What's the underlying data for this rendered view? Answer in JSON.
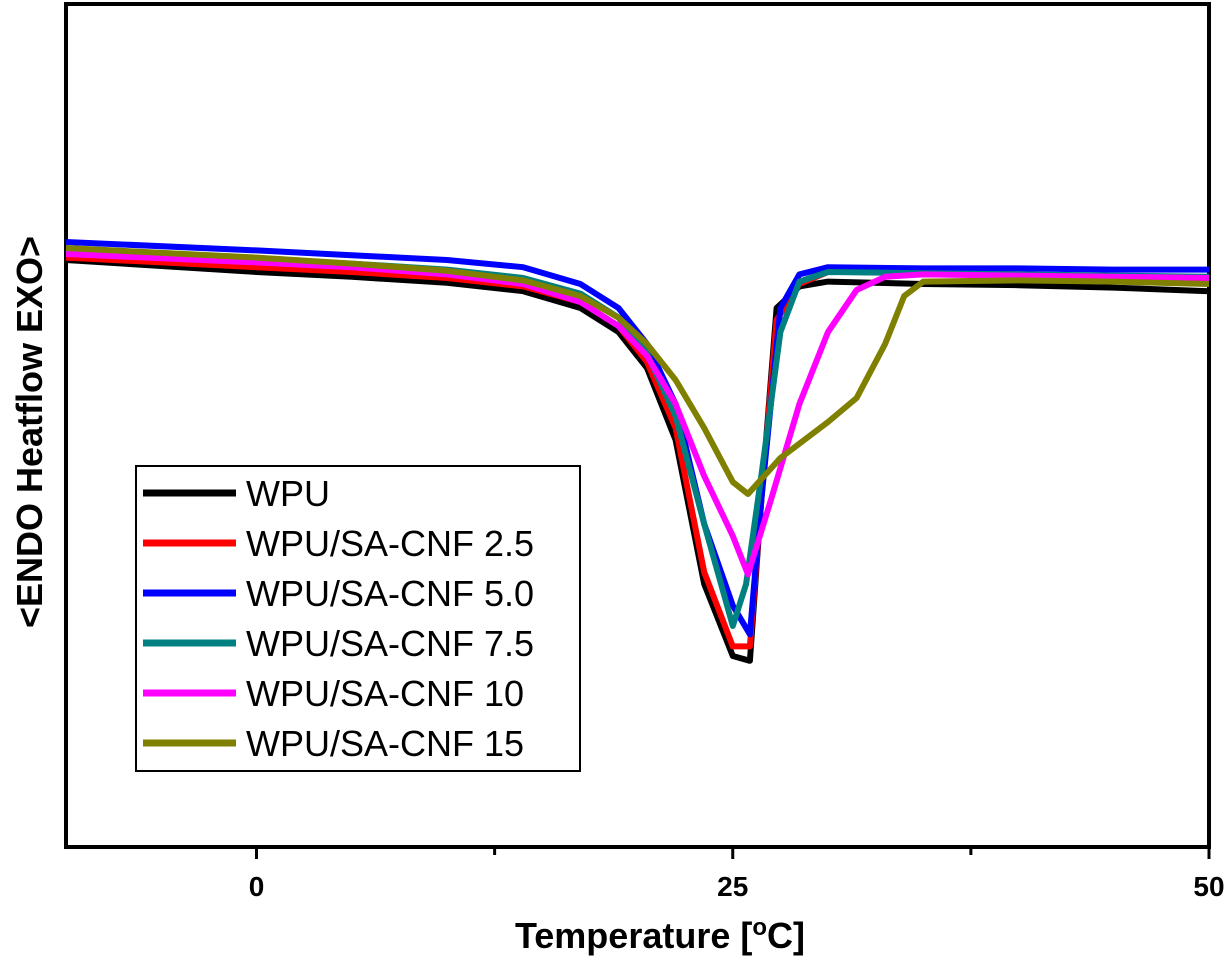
{
  "chart_data": {
    "type": "line",
    "xlabel": "Temperature [°C]",
    "xlabel_parts": {
      "prefix": "Temperature [",
      "sup": "o",
      "suffix": "C]"
    },
    "ylabel": "<ENDO Heatflow EXO>",
    "xlim": [
      -10,
      50
    ],
    "ylim": [
      -0.45,
      0.1
    ],
    "x_ticks": [
      0,
      25,
      50
    ],
    "x_minor_ticks": [
      12.5,
      37.5
    ],
    "grid": false,
    "y_tick_labels": false,
    "legend": "bottom-left inside plot",
    "series": [
      {
        "name": "WPU",
        "color": "#000000",
        "points": [
          [
            -10,
            0
          ],
          [
            0,
            -0.01
          ],
          [
            5,
            -0.014
          ],
          [
            10,
            -0.019
          ],
          [
            14,
            -0.026
          ],
          [
            17,
            -0.04
          ],
          [
            19,
            -0.06
          ],
          [
            20.5,
            -0.09
          ],
          [
            22,
            -0.15
          ],
          [
            23.5,
            -0.27
          ],
          [
            25,
            -0.33
          ],
          [
            25.9,
            -0.334
          ],
          [
            26.5,
            -0.2
          ],
          [
            27.3,
            -0.04
          ],
          [
            28.5,
            -0.022
          ],
          [
            30,
            -0.018
          ],
          [
            35,
            -0.02
          ],
          [
            40,
            -0.021
          ],
          [
            45,
            -0.023
          ],
          [
            50,
            -0.026
          ]
        ]
      },
      {
        "name": "WPU/SA-CNF 2.5",
        "color": "#ff0000",
        "points": [
          [
            -10,
            0.002
          ],
          [
            0,
            -0.006
          ],
          [
            5,
            -0.01
          ],
          [
            10,
            -0.015
          ],
          [
            14,
            -0.022
          ],
          [
            17,
            -0.035
          ],
          [
            19,
            -0.055
          ],
          [
            20.5,
            -0.085
          ],
          [
            22,
            -0.14
          ],
          [
            23.5,
            -0.26
          ],
          [
            25,
            -0.322
          ],
          [
            25.9,
            -0.322
          ],
          [
            26.5,
            -0.2
          ],
          [
            27.3,
            -0.05
          ],
          [
            28.5,
            -0.02
          ],
          [
            30,
            -0.01
          ],
          [
            35,
            -0.01
          ],
          [
            40,
            -0.012
          ],
          [
            45,
            -0.014
          ],
          [
            50,
            -0.016
          ]
        ]
      },
      {
        "name": "WPU/SA-CNF 5.0",
        "color": "#0000ff",
        "points": [
          [
            -10,
            0.015
          ],
          [
            0,
            0.008
          ],
          [
            5,
            0.004
          ],
          [
            10,
            0
          ],
          [
            14,
            -0.006
          ],
          [
            17,
            -0.02
          ],
          [
            19,
            -0.04
          ],
          [
            20.5,
            -0.07
          ],
          [
            22,
            -0.12
          ],
          [
            23.5,
            -0.22
          ],
          [
            25,
            -0.288
          ],
          [
            25.9,
            -0.312
          ],
          [
            26.5,
            -0.2
          ],
          [
            27.5,
            -0.04
          ],
          [
            28.5,
            -0.012
          ],
          [
            30,
            -0.006
          ],
          [
            35,
            -0.007
          ],
          [
            40,
            -0.007
          ],
          [
            45,
            -0.008
          ],
          [
            50,
            -0.008
          ]
        ]
      },
      {
        "name": "WPU/SA-CNF 7.5",
        "color": "#008080",
        "points": [
          [
            -10,
            0.008
          ],
          [
            0,
            0.001
          ],
          [
            5,
            -0.003
          ],
          [
            10,
            -0.008
          ],
          [
            14,
            -0.015
          ],
          [
            17,
            -0.028
          ],
          [
            19,
            -0.048
          ],
          [
            20.5,
            -0.078
          ],
          [
            22,
            -0.13
          ],
          [
            23.5,
            -0.22
          ],
          [
            25,
            -0.305
          ],
          [
            25.7,
            -0.27
          ],
          [
            26.5,
            -0.18
          ],
          [
            27.5,
            -0.06
          ],
          [
            28.5,
            -0.018
          ],
          [
            30,
            -0.01
          ],
          [
            35,
            -0.011
          ],
          [
            40,
            -0.012
          ],
          [
            45,
            -0.013
          ],
          [
            50,
            -0.014
          ]
        ]
      },
      {
        "name": "WPU/SA-CNF 10",
        "color": "#ff00ff",
        "points": [
          [
            -10,
            0.005
          ],
          [
            0,
            -0.002
          ],
          [
            5,
            -0.006
          ],
          [
            10,
            -0.012
          ],
          [
            14,
            -0.02
          ],
          [
            17,
            -0.035
          ],
          [
            19,
            -0.055
          ],
          [
            20.5,
            -0.08
          ],
          [
            22,
            -0.12
          ],
          [
            23.5,
            -0.18
          ],
          [
            25,
            -0.23
          ],
          [
            25.8,
            -0.262
          ],
          [
            27,
            -0.2
          ],
          [
            28.5,
            -0.12
          ],
          [
            30,
            -0.06
          ],
          [
            31.5,
            -0.025
          ],
          [
            33,
            -0.014
          ],
          [
            35,
            -0.012
          ],
          [
            40,
            -0.013
          ],
          [
            45,
            -0.014
          ],
          [
            50,
            -0.015
          ]
        ]
      },
      {
        "name": "WPU/SA-CNF 15",
        "color": "#808000",
        "points": [
          [
            -10,
            0.01
          ],
          [
            0,
            0.002
          ],
          [
            5,
            -0.003
          ],
          [
            10,
            -0.009
          ],
          [
            14,
            -0.017
          ],
          [
            17,
            -0.03
          ],
          [
            19,
            -0.048
          ],
          [
            20.5,
            -0.07
          ],
          [
            22,
            -0.1
          ],
          [
            23.5,
            -0.14
          ],
          [
            25,
            -0.185
          ],
          [
            25.8,
            -0.195
          ],
          [
            27.5,
            -0.165
          ],
          [
            30,
            -0.135
          ],
          [
            31.5,
            -0.115
          ],
          [
            33,
            -0.07
          ],
          [
            34,
            -0.03
          ],
          [
            35,
            -0.018
          ],
          [
            40,
            -0.017
          ],
          [
            45,
            -0.018
          ],
          [
            50,
            -0.02
          ]
        ]
      }
    ]
  }
}
